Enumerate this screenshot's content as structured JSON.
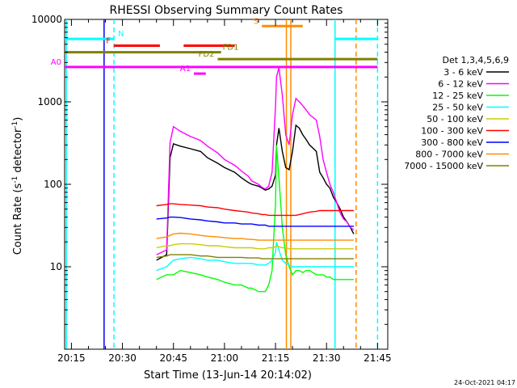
{
  "chart_data": {
    "type": "line",
    "title": "RHESSI Observing Summary Count Rates",
    "xlabel": "Start Time (13-Jun-14 20:14:02)",
    "ylabel": "Count Rate (s",
    "ylabel_sup1": "-1",
    "ylabel_mid": " detector",
    "ylabel_sup2": "-1",
    "ylabel_end": ")",
    "footer": "24-Oct-2021 04:17",
    "yscale": "log",
    "ylim": [
      1,
      10000
    ],
    "xlim_minutes": [
      -2,
      93
    ],
    "x_tick_minutes": [
      0,
      15,
      30,
      45,
      60,
      75,
      90
    ],
    "x_tick_labels": [
      "20:15",
      "20:30",
      "20:45",
      "21:00",
      "21:15",
      "21:30",
      "21:45"
    ],
    "y_tick_values": [
      10,
      100,
      1000,
      10000
    ],
    "y_tick_labels": [
      "10",
      "100",
      "1000",
      "10000"
    ],
    "legend": {
      "title": "Det 1,3,4,5,6,9",
      "placement": "right"
    },
    "series": [
      {
        "name": "3 - 6 keV",
        "color": "#000000",
        "x": [
          25,
          28,
          29,
          30,
          32,
          35,
          38,
          40,
          43,
          45,
          48,
          50,
          52,
          53,
          55,
          56,
          57,
          58,
          59,
          60,
          60.3,
          61,
          62,
          63,
          64,
          65,
          66,
          67,
          68,
          69,
          70,
          72,
          73,
          74,
          75,
          76,
          77,
          78,
          79,
          80,
          81,
          82,
          83
        ],
        "y": [
          12,
          14,
          210,
          310,
          290,
          270,
          250,
          210,
          180,
          160,
          140,
          120,
          105,
          100,
          95,
          90,
          85,
          88,
          95,
          130,
          300,
          480,
          250,
          160,
          150,
          250,
          520,
          480,
          400,
          350,
          300,
          250,
          140,
          120,
          100,
          90,
          70,
          60,
          50,
          40,
          35,
          30,
          25
        ]
      },
      {
        "name": "6 - 12 keV",
        "color": "#ff00ff",
        "x": [
          25,
          28,
          29,
          30,
          32,
          35,
          38,
          40,
          43,
          45,
          48,
          50,
          52,
          53,
          55,
          56,
          57,
          58,
          59,
          60,
          60.3,
          61,
          62,
          63,
          64,
          65,
          66,
          67,
          68,
          69,
          70,
          72,
          73,
          74,
          75,
          76,
          77,
          78,
          79,
          80,
          81,
          82,
          83
        ],
        "y": [
          14,
          16,
          320,
          500,
          440,
          380,
          340,
          290,
          240,
          200,
          170,
          145,
          125,
          110,
          100,
          92,
          88,
          95,
          140,
          900,
          2000,
          2600,
          1200,
          400,
          300,
          700,
          1100,
          1000,
          900,
          800,
          700,
          600,
          380,
          200,
          140,
          100,
          80,
          60,
          45,
          38,
          35,
          30,
          28
        ]
      },
      {
        "name": "12 - 25 keV",
        "color": "#00ff00",
        "x": [
          25,
          28,
          29,
          30,
          32,
          35,
          38,
          40,
          43,
          45,
          48,
          50,
          52,
          53,
          55,
          56,
          57,
          58,
          59,
          60,
          60.3,
          61,
          62,
          63,
          64,
          65,
          66,
          67,
          68,
          69,
          70,
          72,
          73,
          74,
          75,
          76,
          77,
          78,
          79,
          80,
          81,
          82,
          83
        ],
        "y": [
          7,
          8,
          8,
          8,
          9,
          8.5,
          8,
          7.5,
          7,
          6.5,
          6,
          6,
          5.5,
          5.5,
          5,
          5,
          5,
          6,
          9,
          60,
          300,
          120,
          30,
          14,
          10,
          8,
          9,
          9,
          8.5,
          9,
          9,
          8,
          8,
          8,
          7.5,
          7.5,
          7,
          7,
          7,
          7,
          7,
          7,
          7
        ]
      },
      {
        "name": "25 - 50 keV",
        "color": "#00ffff",
        "x": [
          25,
          28,
          29,
          30,
          32,
          35,
          38,
          40,
          43,
          45,
          48,
          50,
          52,
          53,
          55,
          56,
          57,
          58,
          59,
          60,
          60.3,
          61,
          62,
          63,
          64,
          65,
          66,
          67,
          68,
          69,
          70,
          72,
          73,
          74,
          75,
          76,
          77,
          78,
          79,
          80,
          81,
          82,
          83
        ],
        "y": [
          9,
          10,
          11,
          12,
          12.5,
          13,
          12.5,
          12,
          12,
          11.5,
          11,
          11,
          11,
          11,
          10.5,
          10.5,
          10.5,
          11,
          12,
          15,
          20,
          16,
          12,
          11,
          10.5,
          10,
          10,
          10,
          10,
          10,
          10,
          10,
          10,
          10,
          10,
          10,
          10,
          10,
          10,
          10,
          10,
          10,
          10
        ]
      },
      {
        "name": "50 - 100 keV",
        "color": "#cccc00",
        "x": [
          25,
          28,
          29,
          30,
          32,
          35,
          38,
          40,
          43,
          45,
          48,
          50,
          52,
          53,
          55,
          56,
          57,
          58,
          59,
          60,
          60.3,
          61,
          62,
          63,
          64,
          65,
          66,
          67,
          68,
          69,
          70,
          72,
          73,
          74,
          75,
          76,
          77,
          78,
          79,
          80,
          81,
          82,
          83
        ],
        "y": [
          17,
          18,
          18,
          18.5,
          19,
          19,
          18.5,
          18,
          18,
          17.5,
          17,
          17,
          17,
          17,
          16.5,
          16.5,
          16.5,
          17,
          17,
          17.5,
          18,
          17.5,
          17,
          17,
          16.5,
          16.5,
          16.5,
          16.5,
          16.5,
          16.5,
          16.5,
          16.5,
          16.5,
          16.5,
          16.5,
          16.5,
          16.5,
          16.5,
          16.5,
          16.5,
          16.5,
          16.5,
          16.5
        ]
      },
      {
        "name": "100 - 300 keV",
        "color": "#ff0000",
        "x": [
          25,
          28,
          29,
          30,
          32,
          35,
          38,
          40,
          43,
          45,
          48,
          50,
          52,
          53,
          55,
          56,
          57,
          58,
          59,
          60,
          60.3,
          61,
          62,
          63,
          64,
          65,
          66,
          67,
          68,
          69,
          70,
          72,
          73,
          74,
          75,
          76,
          77,
          78,
          79,
          80,
          81,
          82,
          83
        ],
        "y": [
          55,
          57,
          58,
          58,
          57,
          56,
          55,
          53,
          52,
          50,
          48,
          47,
          46,
          45,
          44,
          43,
          43,
          42,
          42,
          42,
          42,
          42,
          42,
          42,
          42,
          42,
          42,
          43,
          44,
          45,
          46,
          47,
          48,
          48,
          48,
          48,
          48,
          48,
          48,
          48,
          48,
          48,
          48
        ]
      },
      {
        "name": "300 - 800 keV",
        "color": "#0000ff",
        "x": [
          25,
          28,
          29,
          30,
          32,
          35,
          38,
          40,
          43,
          45,
          48,
          50,
          52,
          53,
          55,
          56,
          57,
          58,
          59,
          60,
          60.3,
          61,
          62,
          63,
          64,
          65,
          66,
          67,
          68,
          69,
          70,
          72,
          73,
          74,
          75,
          76,
          77,
          78,
          79,
          80,
          81,
          82,
          83
        ],
        "y": [
          38,
          39,
          40,
          40,
          39.5,
          38,
          37,
          36,
          35,
          34,
          34,
          33,
          33,
          33,
          32,
          32,
          32,
          31,
          31,
          31,
          31,
          31,
          31,
          31,
          31,
          31,
          31,
          31,
          31,
          31,
          31,
          31,
          31,
          31,
          31,
          31,
          31,
          31,
          31,
          31,
          31,
          31,
          31
        ]
      },
      {
        "name": "800 - 7000 keV",
        "color": "#ff8c00",
        "x": [
          25,
          28,
          29,
          30,
          32,
          35,
          38,
          40,
          43,
          45,
          48,
          50,
          52,
          53,
          55,
          56,
          57,
          58,
          59,
          60,
          60.3,
          61,
          62,
          63,
          64,
          65,
          66,
          67,
          68,
          69,
          70,
          72,
          73,
          74,
          75,
          76,
          77,
          78,
          79,
          80,
          81,
          82,
          83
        ],
        "y": [
          22,
          23,
          24,
          25,
          25.5,
          25,
          24,
          23.5,
          23,
          22.5,
          22,
          22,
          21.5,
          21.5,
          21,
          21,
          21,
          21,
          21,
          21,
          21,
          21,
          21,
          21,
          21,
          21,
          21,
          21,
          21,
          21,
          21,
          21,
          21,
          21,
          21,
          21,
          21,
          21,
          21,
          21,
          21,
          21,
          21
        ]
      },
      {
        "name": "7000 - 15000 keV",
        "color": "#808000",
        "x": [
          25,
          28,
          29,
          30,
          32,
          35,
          38,
          40,
          43,
          45,
          48,
          50,
          52,
          53,
          55,
          56,
          57,
          58,
          59,
          60,
          60.3,
          61,
          62,
          63,
          64,
          65,
          66,
          67,
          68,
          69,
          70,
          72,
          73,
          74,
          75,
          76,
          77,
          78,
          79,
          80,
          81,
          82,
          83
        ],
        "y": [
          13,
          13.5,
          14,
          14,
          14,
          14,
          13.5,
          13.5,
          13,
          13,
          13,
          13,
          12.8,
          12.8,
          12.8,
          12.5,
          12.5,
          12.5,
          12.5,
          12.5,
          12.5,
          12.5,
          12.5,
          12.5,
          12.5,
          12.5,
          12.5,
          12.5,
          12.5,
          12.5,
          12.5,
          12.5,
          12.5,
          12.5,
          12.5,
          12.5,
          12.5,
          12.5,
          12.5,
          12.5,
          12.5,
          12.5,
          12.5
        ]
      }
    ],
    "flag_bars": [
      {
        "label": "N",
        "color": "#00ffff",
        "y": 5800,
        "segments": [
          [
            -2,
            12.5
          ],
          [
            77.5,
            90
          ]
        ]
      },
      {
        "label": "S",
        "color": "#ff8c00",
        "y": 8300,
        "segments": [
          [
            56,
            68
          ]
        ]
      },
      {
        "label": "F",
        "color": "#ff0000",
        "y": 4800,
        "segments": [
          [
            12.5,
            26
          ],
          [
            33,
            48
          ]
        ]
      },
      {
        "label": "FD1",
        "color": "#808000",
        "y": 4000,
        "segments": [
          [
            -2,
            44
          ]
        ]
      },
      {
        "label": "FD2",
        "color": "#808000",
        "y": 3300,
        "segments": [
          [
            43,
            90
          ]
        ]
      },
      {
        "label": "A0",
        "color": "#ff00ff",
        "y": 2650,
        "segments": [
          [
            -2,
            90
          ]
        ]
      },
      {
        "label": "A1",
        "color": "#ff00ff",
        "y": 2200,
        "segments": [
          [
            36,
            39.5
          ]
        ]
      }
    ],
    "vertical_markers": [
      {
        "minute": -1.5,
        "color": "#00ffff",
        "style": "solid"
      },
      {
        "minute": 12.5,
        "color": "#00ffff",
        "style": "dashed"
      },
      {
        "minute": 9.6,
        "color": "#0000ff",
        "style": "solid"
      },
      {
        "minute": 63.2,
        "color": "#ff8c00",
        "style": "solid"
      },
      {
        "minute": 64.5,
        "color": "#ff8c00",
        "style": "solid"
      },
      {
        "minute": 77.5,
        "color": "#00ffff",
        "style": "solid"
      },
      {
        "minute": 83.7,
        "color": "#ff8c00",
        "style": "dashed"
      },
      {
        "minute": 90,
        "color": "#00ffff",
        "style": "dashed"
      }
    ]
  }
}
